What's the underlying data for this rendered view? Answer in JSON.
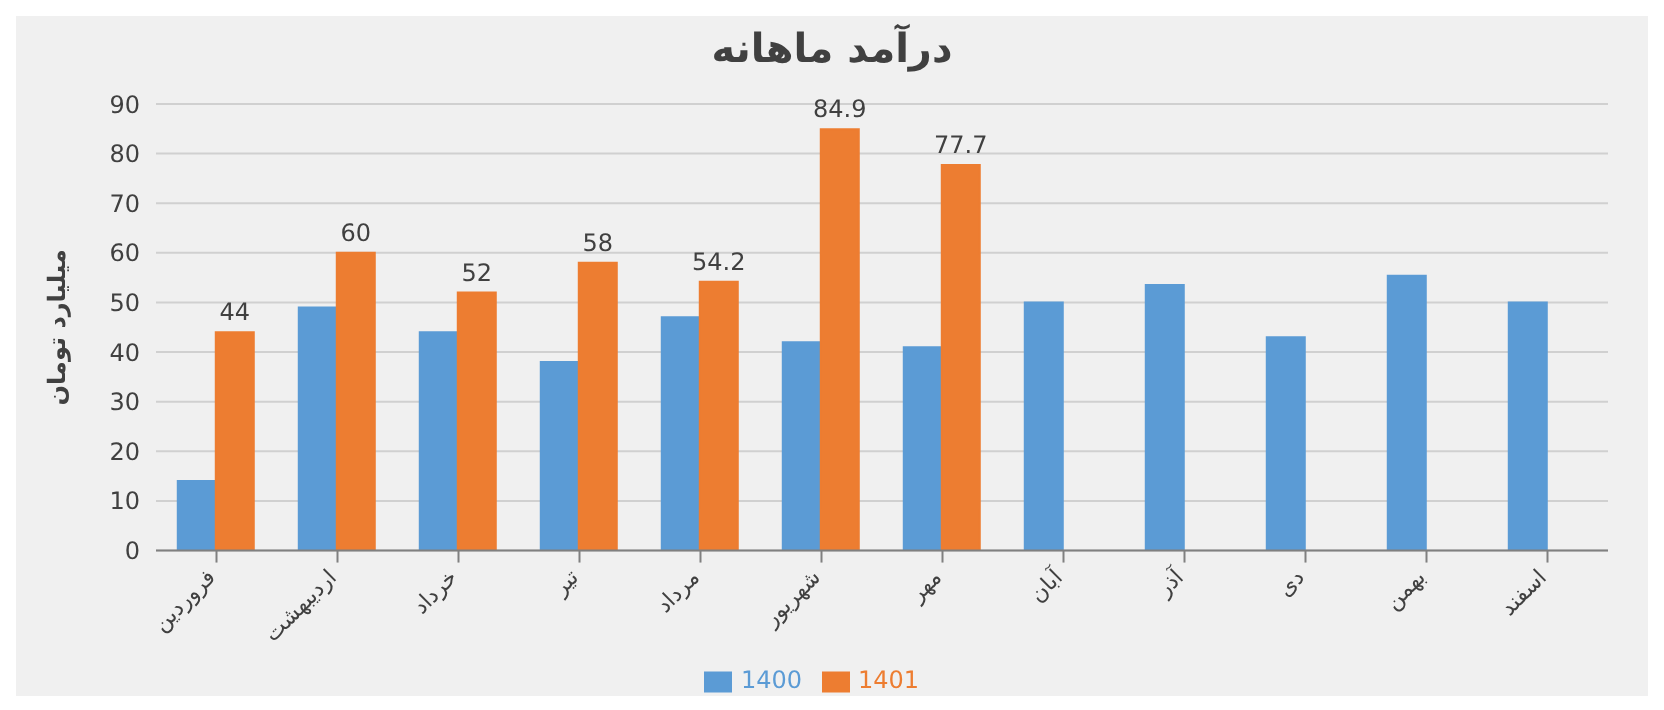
{
  "chart_data": {
    "type": "bar",
    "title": "درآمد ماهانه",
    "ylabel": "میلیارد تومان",
    "categories": [
      "فروردین",
      "اردیبهشت",
      "خرداد",
      "تیر",
      "مرداد",
      "شهریور",
      "مهر",
      "آبان",
      "آذر",
      "دی",
      "بهمن",
      "اسفند"
    ],
    "series": [
      {
        "name": "1400",
        "color": "#5b9bd5",
        "values": [
          14,
          49,
          44,
          38,
          47,
          42,
          41,
          50,
          53.5,
          43,
          55.4,
          50
        ]
      },
      {
        "name": "1401",
        "color": "#ed7d31",
        "values": [
          44,
          60,
          52,
          58,
          54.2,
          84.9,
          77.7,
          null,
          null,
          null,
          null,
          null
        ],
        "value_labels": [
          "44",
          "60",
          "52",
          "58",
          "54.2",
          "84.9",
          "77.7",
          null,
          null,
          null,
          null,
          null
        ]
      }
    ],
    "ylim": [
      0,
      90
    ],
    "yticks": [
      0,
      10,
      20,
      30,
      40,
      50,
      60,
      70,
      80,
      90
    ],
    "grid": "y",
    "legend": "bottom"
  }
}
